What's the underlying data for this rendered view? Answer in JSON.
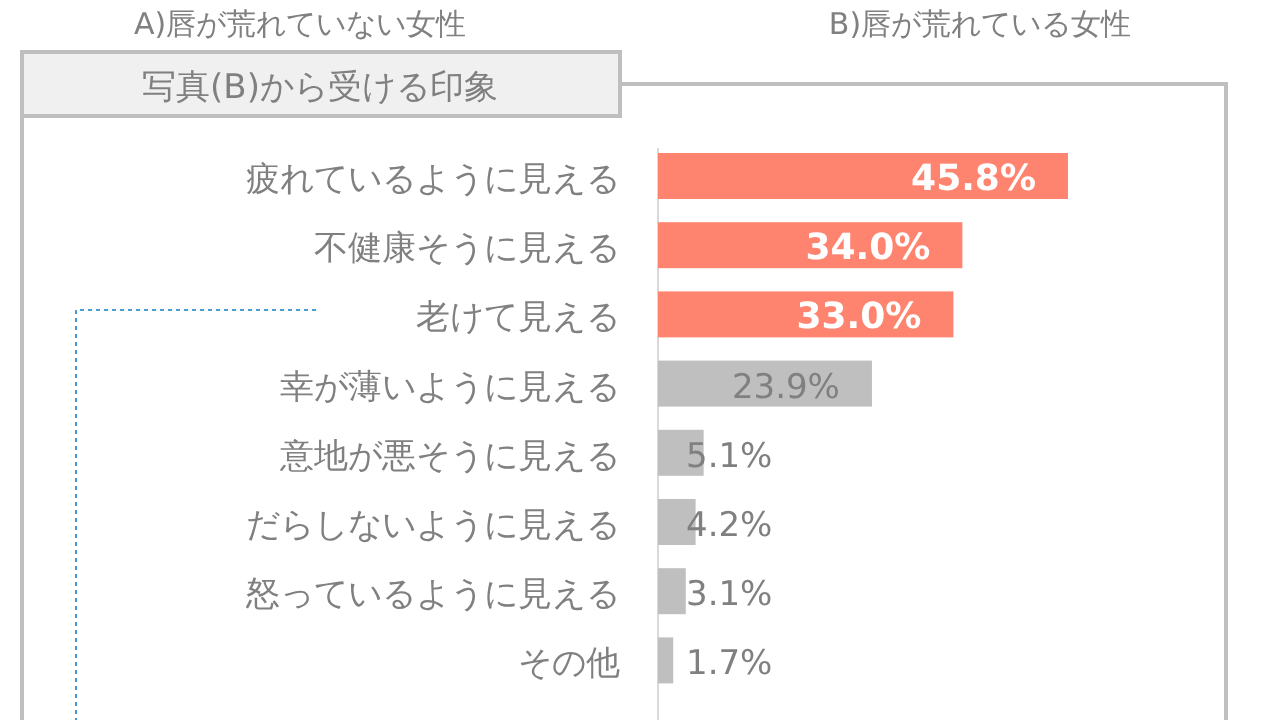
{
  "chart_data": {
    "type": "bar",
    "orientation": "horizontal",
    "title": "写真(B)から受ける印象",
    "annotations": [
      "A)唇が荒れていない女性",
      "B)唇が荒れている女性"
    ],
    "categories": [
      "疲れているように見える",
      "不健康そうに見える",
      "老けて見える",
      "幸が薄いように見える",
      "意地が悪そうに見える",
      "だらしないように見える",
      "怒っているように見える",
      "その他"
    ],
    "values": [
      45.8,
      34.0,
      33.0,
      23.9,
      5.1,
      4.2,
      3.1,
      1.7
    ],
    "colors": [
      "#ff8470",
      "#ff8470",
      "#ff8470",
      "#bfbfbf",
      "#bfbfbf",
      "#bfbfbf",
      "#bfbfbf",
      "#bfbfbf"
    ],
    "value_labels": [
      "45.8%",
      "34.0%",
      "33.0%",
      "23.9%",
      "5.1%",
      "4.2%",
      "3.1%",
      "1.7%"
    ]
  }
}
